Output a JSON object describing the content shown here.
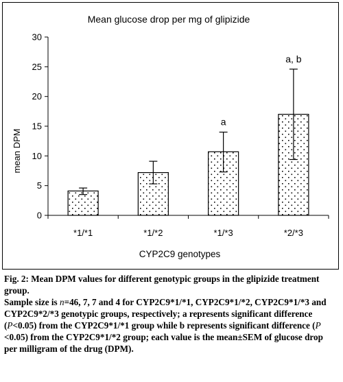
{
  "chart_data": {
    "type": "bar",
    "title": "Mean glucose drop per mg of glipizide",
    "xlabel": "CYP2C9 genotypes",
    "ylabel": "mean DPM",
    "ylim": [
      0,
      30
    ],
    "yticks": [
      0,
      5,
      10,
      15,
      20,
      25,
      30
    ],
    "categories": [
      "*1/*1",
      "*1/*2",
      "*1/*3",
      "*2/*3"
    ],
    "series": [
      {
        "values": [
          4.1,
          7.2,
          10.7,
          17.0
        ],
        "error_lower": [
          3.5,
          5.3,
          7.3,
          9.4
        ],
        "error_upper": [
          4.6,
          9.1,
          14.0,
          24.6
        ]
      }
    ],
    "annotations": [
      "",
      "",
      "a",
      "a, b"
    ],
    "pattern": "dotted",
    "grid": false,
    "legend": "none"
  },
  "caption": {
    "title": "Fig. 2: Mean DPM values for different genotypic groups in the glipizide treatment group.",
    "body_part1": "Sample size is ",
    "body_n": "n",
    "body_part2": "=46, 7, 7 and 4 for CYP2C9*1/*1, CYP2C9*1/*2, CYP2C9*1/*3 and  CYP2C9*2/*3 genotypic groups, respectively; a represents significant difference (",
    "body_p1": "P",
    "body_part3": "<0.05) from the CYP2C9*1/*1 group while b represents significant difference (",
    "body_p2": "P",
    "body_part4": " <0.05) from the CYP2C9*1/*2 group; each value is the mean±SEM of glucose drop per milligram of the drug (DPM)."
  }
}
